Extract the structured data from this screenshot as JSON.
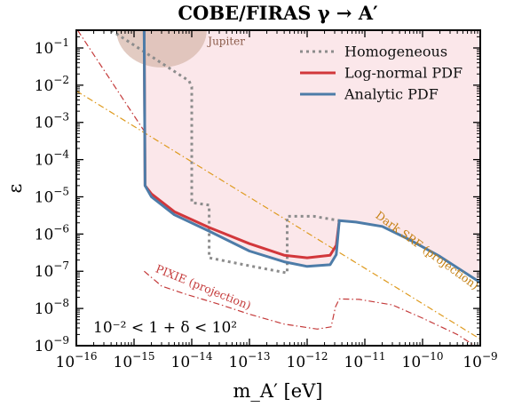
{
  "colors": {
    "excluded_fill": "#fbe7ea",
    "jupiter_fill": "#d8b9ad",
    "jupiter_text": "#8a5a48",
    "homogeneous": "#8c8c8c",
    "lognormal": "#d2373b",
    "analytic": "#4d7ca8",
    "pixie": "#c43a3a",
    "dark_srf": "#de9a1e"
  },
  "chart_data": {
    "type": "line",
    "title": "COBE/FIRAS γ → A′",
    "xlabel": "m_A′ [eV]",
    "ylabel": "ε",
    "xscale": "log",
    "yscale": "log",
    "xlim": [
      1e-16,
      1e-09
    ],
    "ylim": [
      1e-09,
      0.3
    ],
    "grid": false,
    "legend_position": "top-right",
    "xticks": [
      {
        "base": "10",
        "exp": "−16",
        "value": 1e-16
      },
      {
        "base": "10",
        "exp": "−15",
        "value": 1e-15
      },
      {
        "base": "10",
        "exp": "−14",
        "value": 1e-14
      },
      {
        "base": "10",
        "exp": "−13",
        "value": 1e-13
      },
      {
        "base": "10",
        "exp": "−12",
        "value": 1e-12
      },
      {
        "base": "10",
        "exp": "−11",
        "value": 1e-11
      },
      {
        "base": "10",
        "exp": "−10",
        "value": 1e-10
      },
      {
        "base": "10",
        "exp": "−9",
        "value": 1e-09
      }
    ],
    "yticks": [
      {
        "base": "10",
        "exp": "−9",
        "value": 1e-09
      },
      {
        "base": "10",
        "exp": "−8",
        "value": 1e-08
      },
      {
        "base": "10",
        "exp": "−7",
        "value": 1e-07
      },
      {
        "base": "10",
        "exp": "−6",
        "value": 1e-06
      },
      {
        "base": "10",
        "exp": "−5",
        "value": 1e-05
      },
      {
        "base": "10",
        "exp": "−4",
        "value": 0.0001
      },
      {
        "base": "10",
        "exp": "−3",
        "value": 0.001
      },
      {
        "base": "10",
        "exp": "−2",
        "value": 0.01
      },
      {
        "base": "10",
        "exp": "−1",
        "value": 0.1
      }
    ],
    "series": [
      {
        "name": "Homogeneous",
        "style": "dotted",
        "color": "#8c8c8c",
        "points": [
          [
            4e-16,
            0.3
          ],
          [
            9e-15,
            0.013
          ],
          [
            1e-14,
            0.009
          ],
          [
            1e-14,
            7e-06
          ],
          [
            2e-14,
            6e-06
          ],
          [
            2e-14,
            2.3e-07
          ],
          [
            1e-13,
            1.4e-07
          ],
          [
            4.5e-13,
            9e-08
          ],
          [
            4.5e-13,
            3e-06
          ],
          [
            1.3e-12,
            3e-06
          ],
          [
            3.6e-12,
            2.3e-06
          ]
        ]
      },
      {
        "name": "Log-normal PDF",
        "style": "solid",
        "color": "#d2373b",
        "points": [
          [
            1.5e-15,
            0.3
          ],
          [
            1.55e-15,
            2e-05
          ],
          [
            2e-15,
            1.2e-05
          ],
          [
            5e-15,
            4e-06
          ],
          [
            2e-14,
            1.5e-06
          ],
          [
            1e-13,
            5.5e-07
          ],
          [
            4e-13,
            2.7e-07
          ],
          [
            1e-12,
            2.3e-07
          ],
          [
            2.5e-12,
            2.7e-07
          ],
          [
            3.2e-12,
            5e-07
          ],
          [
            3.6e-12,
            2.3e-06
          ]
        ]
      },
      {
        "name": "Analytic PDF",
        "style": "solid",
        "color": "#4d7ca8",
        "points": [
          [
            1.5e-15,
            0.3
          ],
          [
            1.55e-15,
            2e-05
          ],
          [
            2e-15,
            1e-05
          ],
          [
            5e-15,
            3.3e-06
          ],
          [
            2e-14,
            1.2e-06
          ],
          [
            1e-13,
            3.5e-07
          ],
          [
            4e-13,
            1.8e-07
          ],
          [
            1e-12,
            1.35e-07
          ],
          [
            2.5e-12,
            1.5e-07
          ],
          [
            3.2e-12,
            2.8e-07
          ],
          [
            3.6e-12,
            2.3e-06
          ],
          [
            7e-12,
            2.1e-06
          ],
          [
            2e-11,
            1.6e-06
          ],
          [
            6e-11,
            7e-07
          ],
          [
            2e-10,
            2.5e-07
          ],
          [
            1e-09,
            5e-08
          ]
        ]
      },
      {
        "name": "PIXIE (projection)",
        "style": "dashdot",
        "color": "#c43a3a",
        "points": [
          [
            1.5e-15,
            1e-07
          ],
          [
            3e-15,
            4e-08
          ],
          [
            8e-15,
            2.4e-08
          ],
          [
            3e-14,
            1.3e-08
          ],
          [
            1e-13,
            7e-09
          ],
          [
            4e-13,
            3.8e-09
          ],
          [
            1.5e-12,
            2.8e-09
          ],
          [
            2.6e-12,
            3.2e-09
          ],
          [
            3.1e-12,
            1.1e-08
          ],
          [
            3.6e-12,
            1.8e-08
          ],
          [
            8e-12,
            1.75e-08
          ],
          [
            3e-11,
            1.25e-08
          ],
          [
            1e-10,
            5.5e-09
          ],
          [
            4e-10,
            2e-09
          ],
          [
            1e-09,
            8e-10
          ]
        ]
      },
      {
        "name": "Dark SRF (projection)",
        "style": "dashdot",
        "color": "#de9a1e",
        "points": [
          [
            1e-16,
            0.007
          ],
          [
            1e-09,
            1.5e-09
          ]
        ]
      },
      {
        "name": "",
        "style": "dashdot",
        "color": "#c43a3a",
        "points": [
          [
            1.05e-16,
            0.3
          ],
          [
            1.6e-15,
            0.0005
          ]
        ]
      }
    ],
    "annotations": {
      "jupiter": "Jupiter",
      "pixie": "PIXIE (projection)",
      "dark_srf": "Dark SRF (projection)",
      "condition": "10⁻² < 1 + δ < 10²"
    },
    "legend": [
      {
        "label": "Homogeneous",
        "style": "dotted",
        "color": "#8c8c8c"
      },
      {
        "label": "Log-normal PDF",
        "style": "solid",
        "color": "#d2373b"
      },
      {
        "label": "Analytic PDF",
        "style": "solid",
        "color": "#4d7ca8"
      }
    ]
  }
}
